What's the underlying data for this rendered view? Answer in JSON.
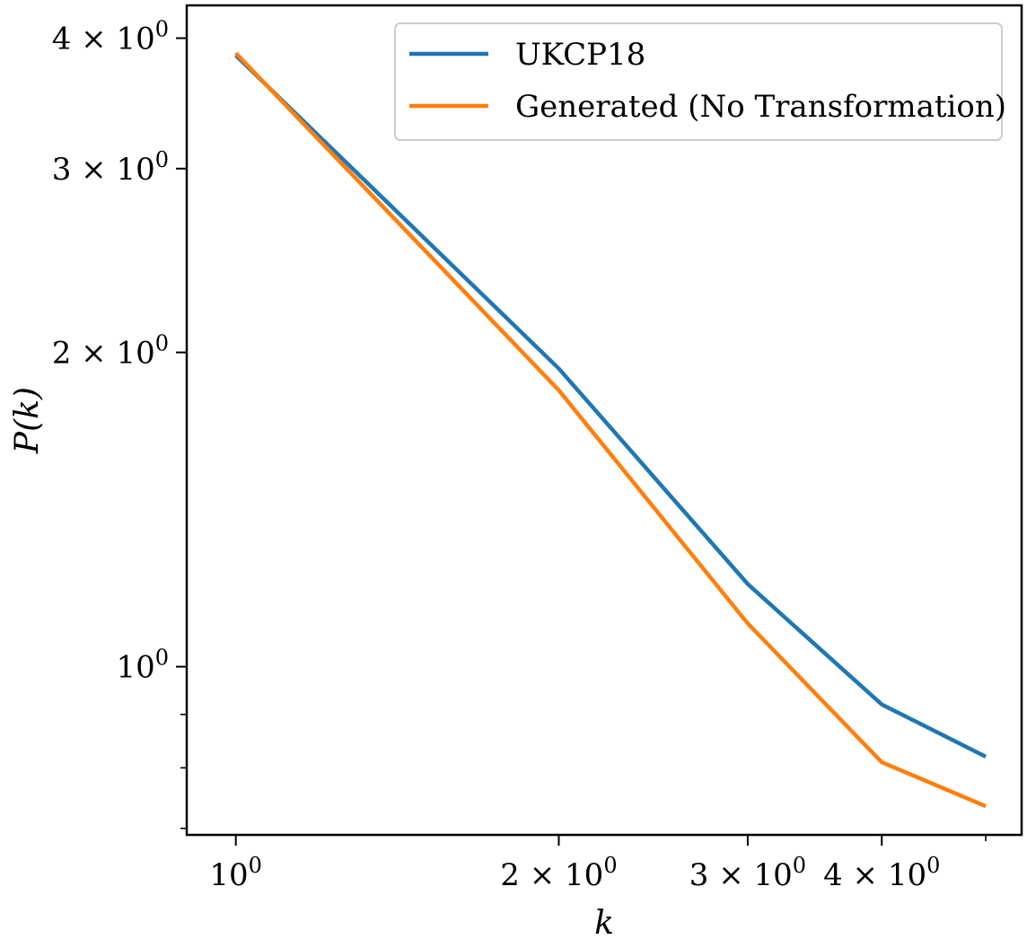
{
  "chart_data": {
    "type": "line",
    "title": "",
    "xlabel": "k",
    "ylabel": "P(k)",
    "xscale": "log",
    "yscale": "log",
    "x": [
      1,
      2,
      3,
      4,
      5
    ],
    "series": [
      {
        "name": "UKCP18",
        "color": "#1f77b4",
        "values": [
          3.85,
          1.93,
          1.2,
          0.92,
          0.82
        ]
      },
      {
        "name": "Generated (No Transformation)",
        "color": "#ff7f0e",
        "values": [
          3.87,
          1.84,
          1.1,
          0.81,
          0.735
        ]
      }
    ],
    "xlim": [
      0.9,
      5.4
    ],
    "ylim": [
      0.69,
      4.3
    ],
    "xticks": [
      {
        "value": 1,
        "mant": "",
        "exp": "0"
      },
      {
        "value": 2,
        "mant": "2 × ",
        "exp": "0"
      },
      {
        "value": 3,
        "mant": "3 × ",
        "exp": "0"
      },
      {
        "value": 4,
        "mant": "4 × ",
        "exp": "0"
      }
    ],
    "xminor_ticks": [
      5
    ],
    "yticks": [
      {
        "value": 1,
        "mant": "",
        "exp": "0"
      },
      {
        "value": 2,
        "mant": "2 × ",
        "exp": "0"
      },
      {
        "value": 3,
        "mant": "3 × ",
        "exp": "0"
      },
      {
        "value": 4,
        "mant": "4 × ",
        "exp": "0"
      }
    ],
    "yminor_ticks": [
      0.7,
      0.8,
      0.9
    ],
    "grid": false,
    "legend_position": "top-right"
  }
}
